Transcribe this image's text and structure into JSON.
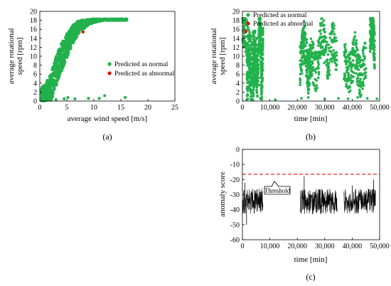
{
  "chart_data": [
    {
      "panel": "(a)",
      "type": "scatter",
      "xlabel": "average wind speed [m/s]",
      "ylabel_lines": [
        "average rotational",
        "speed [rpm]"
      ],
      "xlim": [
        0,
        25
      ],
      "ylim": [
        0,
        20
      ],
      "xticks": [
        0,
        5,
        10,
        15,
        20,
        25
      ],
      "yticks": [
        0,
        2,
        4,
        6,
        8,
        10,
        12,
        14,
        16,
        18,
        20
      ],
      "grid": false,
      "legend_position": "right",
      "series": [
        {
          "name": "Predicted as normal",
          "color": "#22b14c",
          "envelope": {
            "wind": [
              0,
              1,
              2,
              2.5,
              3,
              3.5,
              4,
              4.5,
              5,
              5.5,
              6,
              6.5,
              7,
              7.5,
              8,
              9,
              10,
              11,
              12,
              13,
              14,
              15,
              16,
              16.5
            ],
            "lower": [
              0,
              0,
              0,
              1,
              3,
              5,
              6.5,
              8,
              9.5,
              11,
              12.5,
              13.5,
              14.5,
              15.5,
              16,
              17,
              17.5,
              17.8,
              18,
              18,
              18,
              18,
              18,
              18
            ],
            "upper": [
              3,
              4,
              6,
              8,
              10,
              11.5,
              13,
              14,
              15,
              16,
              16.8,
              17.3,
              17.8,
              18,
              18.1,
              18.2,
              18.3,
              18.3,
              18.3,
              18.3,
              18.3,
              18.3,
              18.3,
              18.3
            ]
          },
          "low_speed_points": [
            [
              4.5,
              0.5
            ],
            [
              5.2,
              0.8
            ],
            [
              6.5,
              0.5
            ],
            [
              9,
              0.6
            ],
            [
              11,
              0.6
            ],
            [
              15.8,
              0.8
            ],
            [
              12,
              1.2
            ],
            [
              3,
              0.3
            ]
          ]
        },
        {
          "name": "Predicted as abnormal",
          "color": "#e3120b",
          "points": [
            [
              8,
              15.4
            ]
          ]
        }
      ]
    },
    {
      "panel": "(b)",
      "type": "scatter",
      "xlabel": "time [min]",
      "ylabel_lines": [
        "average rotational",
        "speed [rpm]"
      ],
      "xlim": [
        0,
        50000
      ],
      "ylim": [
        0,
        20
      ],
      "xticks": [
        0,
        10000,
        20000,
        30000,
        40000,
        50000
      ],
      "xtick_labels": [
        "0",
        "10,000",
        "20,000",
        "30,000",
        "40,000",
        "50,000"
      ],
      "yticks": [
        0,
        2,
        4,
        6,
        8,
        10,
        12,
        14,
        16,
        18,
        20
      ],
      "grid": false,
      "legend_position": "top-left",
      "series": [
        {
          "name": "Predicted as normal",
          "color": "#22b14c",
          "segments": [
            {
              "t": [
                0,
                1500,
                3000,
                4500,
                6000
              ],
              "y": [
                18,
                14,
                10,
                12,
                8
              ]
            },
            {
              "t": [
                1500,
                2500,
                3500,
                4500,
                5500
              ],
              "y": [
                4,
                8,
                2,
                9,
                5
              ]
            },
            {
              "t": [
                6000,
                6500,
                7000,
                7500
              ],
              "y": [
                14,
                18,
                4,
                12
              ]
            },
            {
              "t": [
                21000,
                22500,
                24000,
                25000
              ],
              "y": [
                8,
                14,
                6,
                10
              ]
            },
            {
              "t": [
                25000,
                27000,
                29000,
                31000,
                33000,
                34500
              ],
              "y": [
                10,
                6,
                16,
                8,
                14,
                9
              ]
            },
            {
              "t": [
                37000,
                39000,
                41000,
                43000,
                45000
              ],
              "y": [
                9,
                6,
                11,
                5,
                10
              ]
            },
            {
              "t": [
                46500,
                47500,
                48200
              ],
              "y": [
                15,
                18,
                10
              ]
            }
          ],
          "low_speed_points": [
            [
              2000,
              0.5
            ],
            [
              6500,
              0.6
            ],
            [
              12000,
              0.3
            ],
            [
              21500,
              0.6
            ],
            [
              24000,
              0.8
            ],
            [
              30000,
              0.5
            ],
            [
              35000,
              0.6
            ],
            [
              38500,
              0.5
            ],
            [
              42000,
              0.8
            ],
            [
              45500,
              0.6
            ],
            [
              49000,
              0.5
            ]
          ]
        },
        {
          "name": "Predicted as abnormal",
          "color": "#e3120b",
          "points": [
            [
              1200,
              15.5
            ]
          ]
        }
      ]
    },
    {
      "panel": "(c)",
      "type": "line",
      "xlabel": "time [min]",
      "ylabel": "anomaly score",
      "xlim": [
        0,
        50000
      ],
      "ylim": [
        -60,
        0
      ],
      "xticks": [
        0,
        10000,
        20000,
        30000,
        40000,
        50000
      ],
      "xtick_labels": [
        "0",
        "10,000",
        "20,000",
        "30,000",
        "40,000",
        "50,000"
      ],
      "yticks": [
        0,
        -10,
        -20,
        -30,
        -40,
        -50,
        -60
      ],
      "grid": false,
      "threshold": {
        "value": -16.5,
        "label": "Threshold",
        "color": "#e3120b"
      },
      "series": [
        {
          "name": "",
          "color": "#000000",
          "active_ranges": [
            [
              0,
              7500
            ],
            [
              21000,
              34500
            ],
            [
              37000,
              48500
            ]
          ],
          "typical_range": [
            -43,
            -26
          ],
          "spikes": [
            [
              900,
              -22
            ],
            [
              1500,
              -50
            ],
            [
              22500,
              -18
            ],
            [
              40000,
              -24
            ],
            [
              47800,
              -20
            ]
          ]
        }
      ]
    }
  ]
}
